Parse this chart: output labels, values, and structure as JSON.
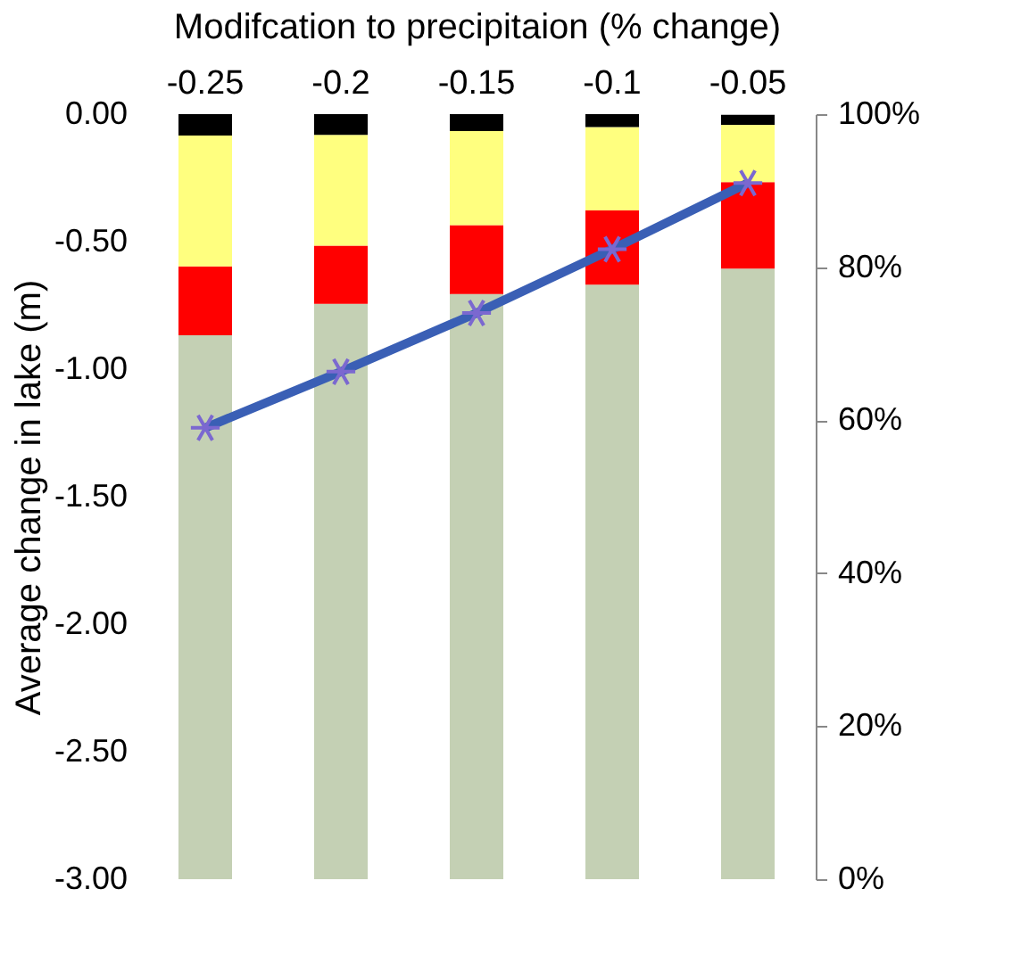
{
  "chart_data": {
    "type": "bar",
    "stacked": true,
    "xlabel": "Modifcation to precipitaion (% change)",
    "ylabel": "Average change in lake (m)",
    "categories": [
      "-0.25",
      "-0.2",
      "-0.15",
      "-0.1",
      "-0.05"
    ],
    "series": [
      {
        "color": "#c4d0b4",
        "axis": "y2",
        "values": [
          71.1,
          75.2,
          76.5,
          77.7,
          79.8
        ]
      },
      {
        "color": "#ff0000",
        "axis": "y2",
        "values": [
          9.0,
          7.6,
          9.0,
          9.7,
          11.3
        ]
      },
      {
        "color": "#ffff7f",
        "axis": "y2",
        "values": [
          17.1,
          14.5,
          12.3,
          10.9,
          7.5
        ]
      },
      {
        "color": "#000000",
        "axis": "y2",
        "values": [
          2.8,
          2.7,
          2.2,
          1.7,
          1.3
        ]
      },
      {
        "type": "line",
        "color": "#3a5fb5",
        "axis": "y",
        "marker": "cross",
        "line_style": "solid",
        "values": [
          -1.23,
          -1.01,
          -0.78,
          -0.53,
          -0.27
        ]
      }
    ],
    "ylim": [
      -3,
      0
    ],
    "yticks": [
      {
        "value": -3,
        "label": "-3.00"
      },
      {
        "value": -2.5,
        "label": "-2.50"
      },
      {
        "value": -2,
        "label": "-2.00"
      },
      {
        "value": -1.5,
        "label": "-1.50"
      },
      {
        "value": -1,
        "label": "-1.00"
      },
      {
        "value": -0.5,
        "label": "-0.50"
      },
      {
        "value": 0,
        "label": "0.00"
      }
    ],
    "y2lim": [
      0,
      100
    ],
    "y2ticks": [
      {
        "value": 0,
        "label": "0%"
      },
      {
        "value": 20,
        "label": "20%"
      },
      {
        "value": 40,
        "label": "40%"
      },
      {
        "value": 60,
        "label": "60%"
      },
      {
        "value": 80,
        "label": "80%"
      },
      {
        "value": 100,
        "label": "100%"
      }
    ],
    "grid": false
  }
}
